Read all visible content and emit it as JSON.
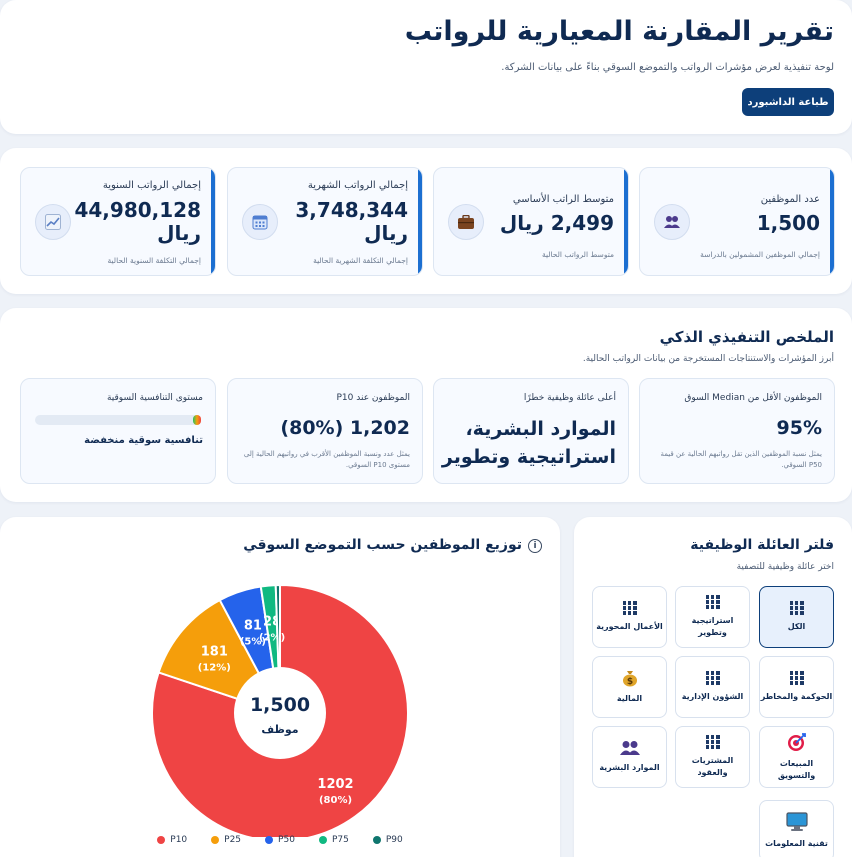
{
  "header": {
    "title": "تقرير المقارنة المعيارية للرواتب",
    "subtitle": "لوحة تنفيذية لعرض مؤشرات الرواتب والتموضع السوقي بناءً على بيانات الشركة.",
    "print_button": "طباعة الداشبورد"
  },
  "kpis": [
    {
      "label": "عدد الموظفين",
      "value": "1,500",
      "note": "إجمالي الموظفين المشمولين بالدراسة",
      "icon": "people-icon"
    },
    {
      "label": "متوسط الراتب الأساسي",
      "value": "2,499 ريال",
      "note": "متوسط الرواتب الحالية",
      "icon": "briefcase-icon"
    },
    {
      "label": "إجمالي الرواتب الشهرية",
      "value_line1": "3,748,344",
      "value_line2": "ريال",
      "note": "إجمالي التكلفة الشهرية الحالية",
      "icon": "calendar-icon"
    },
    {
      "label": "إجمالي الرواتب السنوية",
      "value_line1": "44,980,128",
      "value_line2": "ريال",
      "note": "إجمالي التكلفة السنوية الحالية",
      "icon": "chart-up-icon"
    }
  ],
  "summary": {
    "title": "الملخص التنفيذي الذكي",
    "subtitle": "أبرز المؤشرات والاستنتاجات المستخرجة من بيانات الرواتب الحالية.",
    "cards": [
      {
        "label": "الموظفون الأقل من Median السوق",
        "value": "95%",
        "note": "يمثل نسبة الموظفين الذين تقل رواتبهم الحالية عن قيمة P50 السوقي."
      },
      {
        "label": "أعلى عائلة وظيفية خطرًا",
        "value_line1": "الموارد البشرية،",
        "value_line2": "استراتيجية وتطوير"
      },
      {
        "label": "الموظفون عند P10",
        "value": "1,202 (80%)",
        "note": "يمثل عدد ونسبة الموظفين الأقرب في رواتبهم الحالية إلى مستوى P10 السوقي."
      },
      {
        "label": "مستوى التنافسية السوقية",
        "value": "تنافسية سوقية منخفضة",
        "level": 0.03
      }
    ]
  },
  "chart": {
    "title": "توزيع الموظفين حسب التموضع السوقي",
    "center_value": "1,500",
    "center_label": "موظف"
  },
  "chart_data": {
    "type": "pie",
    "title": "توزيع الموظفين حسب التموضع السوقي",
    "categories": [
      "P10",
      "P25",
      "P50",
      "P75",
      "P90"
    ],
    "values": [
      1202,
      181,
      81,
      28,
      8
    ],
    "slice_labels": [
      "1202",
      "181",
      "81",
      "28",
      ""
    ],
    "slice_percents": [
      "(80%)",
      "(12%)",
      "(5%)",
      "(2%)",
      ""
    ],
    "colors": [
      "#ef4444",
      "#f59e0b",
      "#2563eb",
      "#10b981",
      "#0f766e"
    ],
    "legend_position": "bottom"
  },
  "filter": {
    "title": "فلتر العائلة الوظيفية",
    "subtitle": "اختر عائلة وظيفية للتصفية",
    "items": [
      {
        "label": "الكل",
        "icon": "grid-icon",
        "active": true
      },
      {
        "label": "استراتيجية وتطوير",
        "icon": "grid-icon"
      },
      {
        "label": "الأعمال المحورية",
        "icon": "grid-icon"
      },
      {
        "label": "الحوكمة والمخاطر",
        "icon": "grid-icon"
      },
      {
        "label": "الشؤون الإدارية",
        "icon": "grid-icon"
      },
      {
        "label": "المالية",
        "icon": "money-bag-icon"
      },
      {
        "label": "المبيعات والتسويق",
        "icon": "target-icon"
      },
      {
        "label": "المشتريات والعقود",
        "icon": "grid-icon"
      },
      {
        "label": "الموارد البشرية",
        "icon": "people-icon"
      },
      {
        "label": "تقنية المعلومات",
        "icon": "monitor-icon"
      }
    ]
  },
  "colors": {
    "primary": "#0d3f7a",
    "accent_bar": "#1c6fd1",
    "background": "#eef2f8"
  }
}
